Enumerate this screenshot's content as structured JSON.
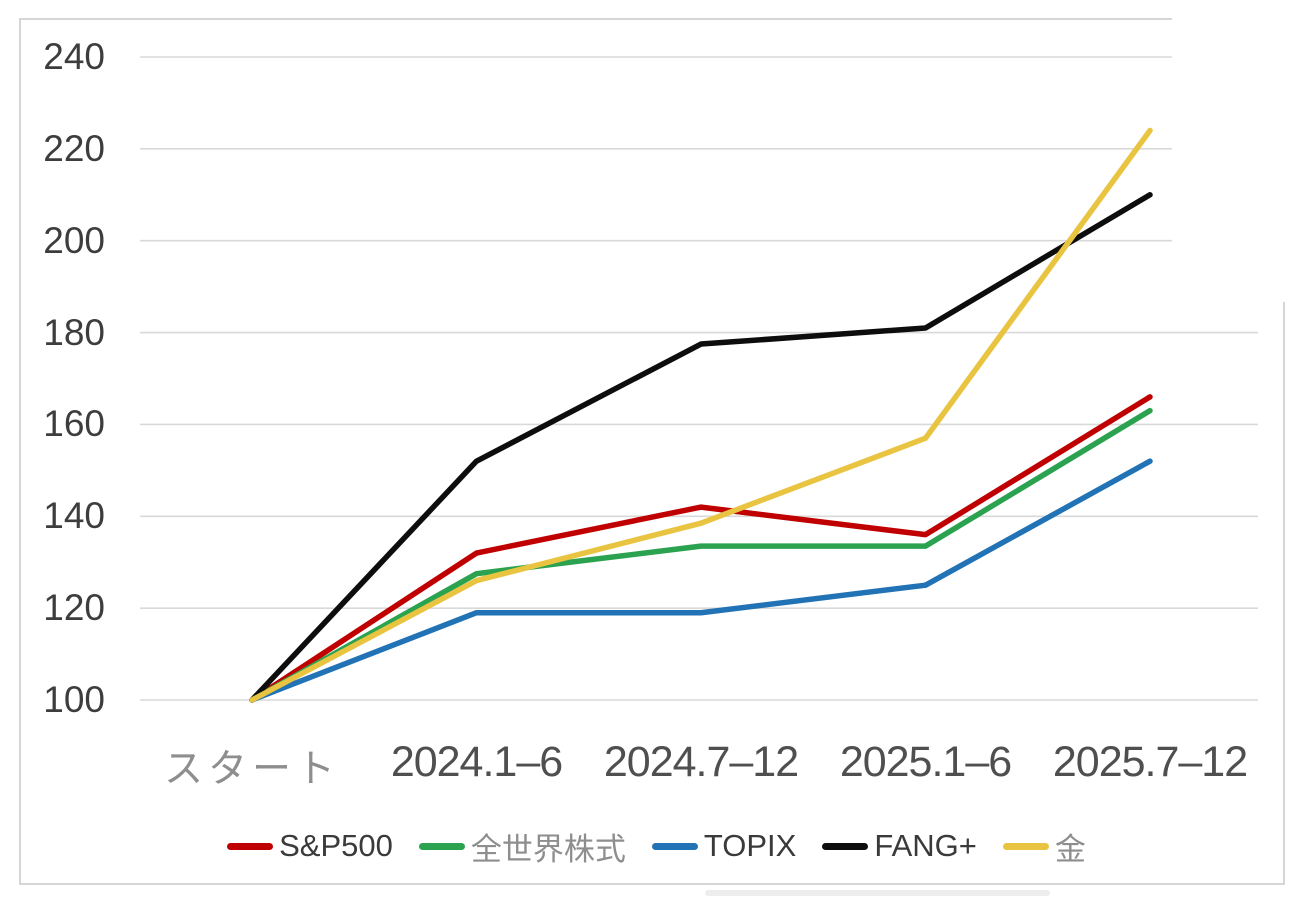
{
  "chart_data": {
    "type": "line",
    "categories": [
      "スタート",
      "2024.1–6",
      "2024.7–12",
      "2025.1–6",
      "2025.7–12"
    ],
    "series": [
      {
        "name": "S&P500",
        "color": "#c00000",
        "values": [
          100,
          132,
          142,
          136,
          166
        ]
      },
      {
        "name": "全世界株式",
        "color": "#2ba24f",
        "values": [
          100,
          127.5,
          133.5,
          133.5,
          163
        ]
      },
      {
        "name": "TOPIX",
        "color": "#2273b5",
        "values": [
          100,
          119,
          119,
          125,
          152
        ]
      },
      {
        "name": "FANG+",
        "color": "#0d0d0d",
        "values": [
          100,
          152,
          177.5,
          181,
          210
        ]
      },
      {
        "name": "金",
        "color": "#e9c440",
        "values": [
          100,
          126,
          138.5,
          157,
          224
        ]
      }
    ],
    "yticks": [
      100,
      120,
      140,
      160,
      180,
      200,
      220,
      240
    ],
    "ylim": [
      100,
      240
    ],
    "ytick_step": 20,
    "grid": true,
    "legend_position": "bottom",
    "title": ""
  },
  "colors": {
    "background": "#ffffff",
    "gridline": "#d9d9d9",
    "figure_border": "#d6d6d6",
    "y_axis_text": "#3d3d3d",
    "x_axis_text": "#4f4f4f"
  }
}
